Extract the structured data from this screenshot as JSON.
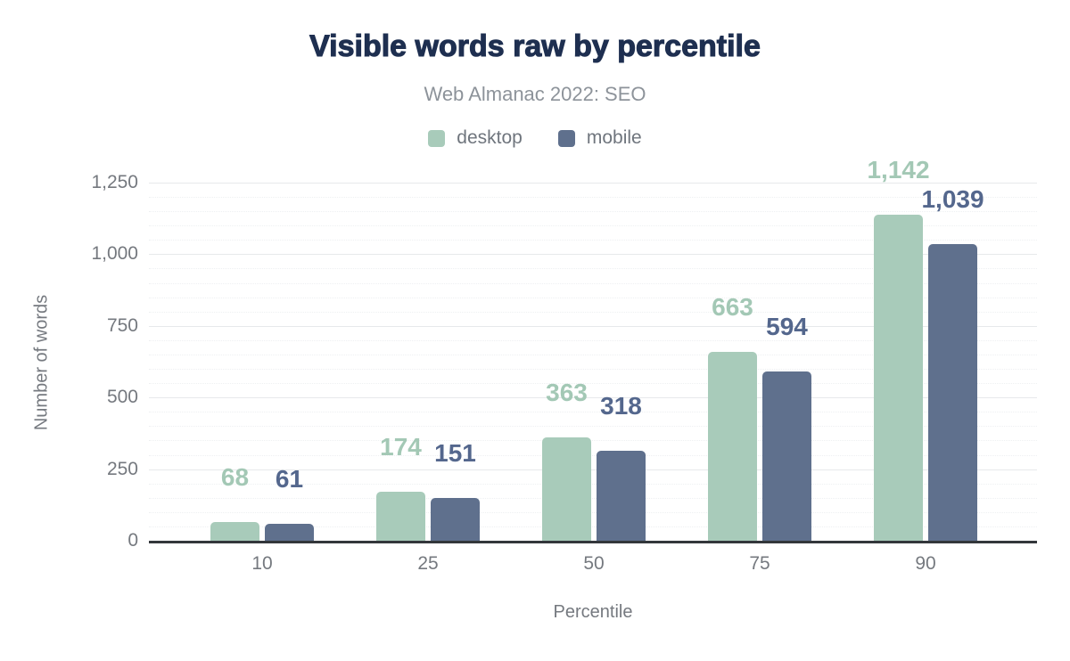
{
  "chart_data": {
    "type": "bar",
    "title": "Visible words raw by percentile",
    "subtitle": "Web Almanac 2022: SEO",
    "categories": [
      "10",
      "25",
      "50",
      "75",
      "90"
    ],
    "series": [
      {
        "name": "desktop",
        "color": "#a8cbba",
        "label_color": "#a3c8b5",
        "values": [
          68,
          174,
          363,
          663,
          1142
        ],
        "value_labels": [
          "68",
          "174",
          "363",
          "663",
          "1,142"
        ]
      },
      {
        "name": "mobile",
        "color": "#5f708d",
        "label_color": "#54678d",
        "values": [
          61,
          151,
          318,
          594,
          1039
        ],
        "value_labels": [
          "61",
          "151",
          "318",
          "594",
          "1,039"
        ]
      }
    ],
    "xlabel": "Percentile",
    "ylabel": "Number of words",
    "ylim": [
      0,
      1250
    ],
    "y_major_step": 250,
    "y_minor_step": 50,
    "y_tick_labels": [
      "0",
      "250",
      "500",
      "750",
      "1,000",
      "1,250"
    ],
    "grid": "horizontal: major solid, minor dotted",
    "legend_position": "top-center",
    "colors": {
      "title": "#1e2f50",
      "subtitle": "#8d939a",
      "axis_text": "#75797f",
      "zero_line": "#33373b",
      "major_grid": "#e7e9eb",
      "minor_grid": "#eef0f2"
    }
  }
}
